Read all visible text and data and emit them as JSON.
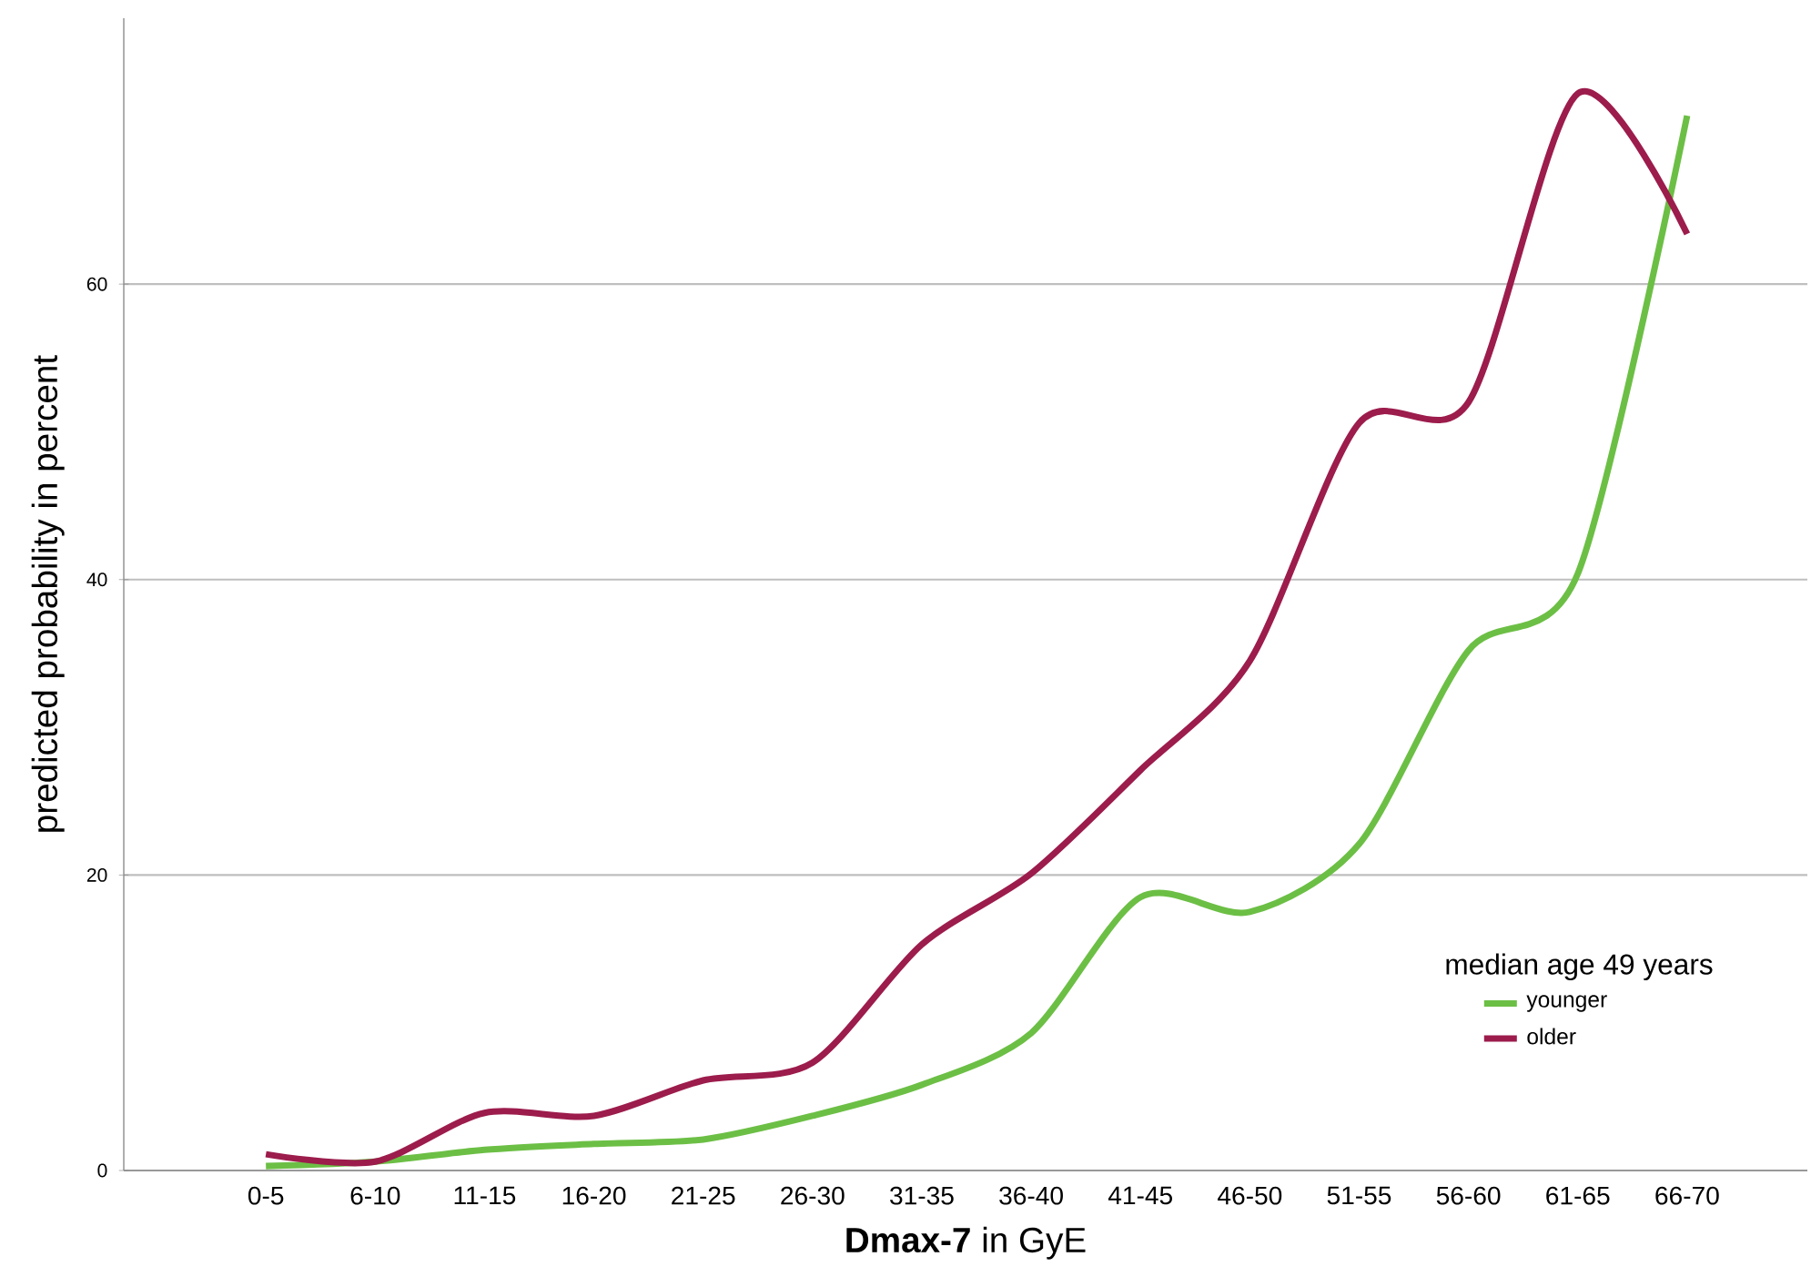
{
  "chart_data": {
    "type": "line",
    "xlabel": "**Dmax-7** in GyE",
    "ylabel": "predicted probability in percent",
    "legend_title": "median age 49 years",
    "categories": [
      "0-5",
      "6-10",
      "11-15",
      "16-20",
      "21-25",
      "26-30",
      "31-35",
      "36-40",
      "41-45",
      "46-50",
      "51-55",
      "56-60",
      "61-65",
      "66-70"
    ],
    "series": [
      {
        "name": "younger",
        "color": "#6cbf45",
        "values": [
          0.3,
          0.6,
          1.4,
          1.8,
          2.1,
          3.7,
          5.8,
          9.3,
          18.5,
          17.5,
          22.1,
          35.2,
          40.4,
          71.4
        ]
      },
      {
        "name": "older",
        "color": "#9c1c4c",
        "values": [
          1.1,
          0.6,
          3.9,
          3.7,
          6.1,
          7.3,
          15.3,
          20.1,
          27.1,
          34.5,
          50.6,
          52,
          72.9,
          63.4
        ]
      }
    ],
    "ylim": [
      0,
      78
    ],
    "yticks": [
      0,
      20,
      40,
      60
    ],
    "grid": "y",
    "legend": "bottom right",
    "marker": "none",
    "line_style": "solid"
  }
}
